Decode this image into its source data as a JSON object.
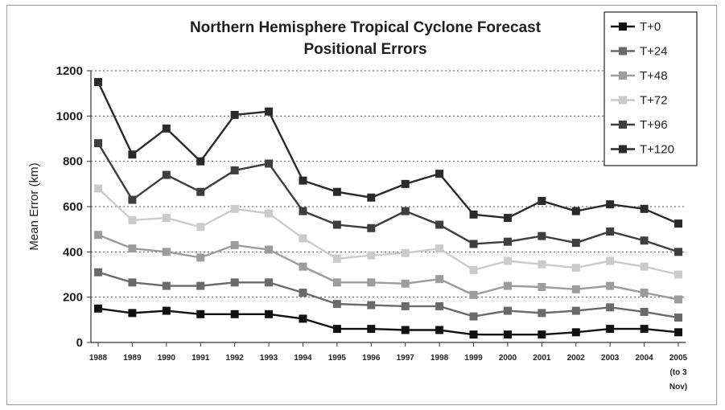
{
  "chart_data": {
    "type": "line",
    "title_lines": [
      "Northern Hemisphere Tropical Cyclone Forecast",
      "Positional Errors"
    ],
    "ylabel": "Mean Error (km)",
    "xlabel": "",
    "ylim": [
      0,
      1200
    ],
    "yticks": [
      0,
      200,
      400,
      600,
      800,
      1000,
      1200
    ],
    "grid": "horizontal dotted",
    "legend_position": "top-right",
    "categories": [
      "1988",
      "1989",
      "1990",
      "1991",
      "1992",
      "1993",
      "1994",
      "1995",
      "1996",
      "1997",
      "1998",
      "1999",
      "2000",
      "2001",
      "2002",
      "2003",
      "2004",
      "2005"
    ],
    "last_category_note": [
      "(to 3",
      "Nov)"
    ],
    "series": [
      {
        "name": "T+0",
        "color": "#111111",
        "values": [
          150,
          130,
          140,
          125,
          125,
          125,
          105,
          60,
          60,
          55,
          55,
          35,
          35,
          35,
          45,
          60,
          60,
          45
        ]
      },
      {
        "name": "T+24",
        "color": "#6a6a6a",
        "values": [
          310,
          265,
          250,
          250,
          265,
          265,
          220,
          170,
          165,
          160,
          160,
          115,
          140,
          130,
          140,
          155,
          135,
          110
        ]
      },
      {
        "name": "T+48",
        "color": "#9c9c9c",
        "values": [
          475,
          415,
          400,
          375,
          430,
          410,
          335,
          265,
          265,
          260,
          280,
          210,
          250,
          245,
          235,
          250,
          220,
          190
        ]
      },
      {
        "name": "T+72",
        "color": "#cbcbcb",
        "values": [
          680,
          540,
          550,
          510,
          590,
          570,
          460,
          370,
          385,
          395,
          415,
          320,
          360,
          345,
          330,
          360,
          335,
          300
        ]
      },
      {
        "name": "T+96",
        "color": "#3e3e3e",
        "values": [
          880,
          630,
          740,
          665,
          760,
          790,
          580,
          520,
          505,
          580,
          520,
          435,
          445,
          470,
          440,
          490,
          450,
          400
        ]
      },
      {
        "name": "T+120",
        "color": "#2a2a2a",
        "values": [
          1150,
          830,
          945,
          800,
          1005,
          1020,
          715,
          665,
          640,
          700,
          745,
          565,
          550,
          625,
          580,
          610,
          590,
          525
        ]
      }
    ]
  }
}
